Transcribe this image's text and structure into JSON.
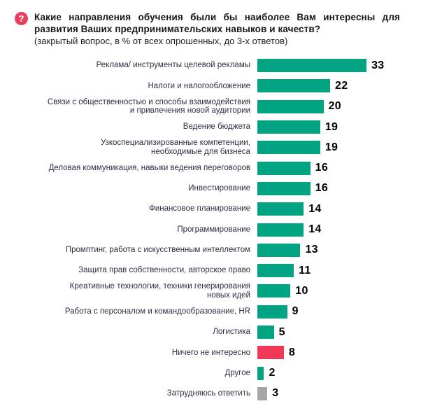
{
  "header": {
    "icon_glyph": "?",
    "title": "Какие направления обучения были бы наиболее Вам интересны для развития Ваших предпринимательских навыков и качеств?",
    "subtitle": "(закрытый вопрос, в % от всех опрошенных, до 3-х ответов)"
  },
  "colors": {
    "bar_teal": "#00a482",
    "bar_red": "#f23858",
    "bar_gray": "#a6a6a6",
    "icon_red": "#e8405e",
    "label_text": "#2d2d44",
    "value_text": "#000000"
  },
  "chart_data": {
    "type": "bar",
    "orientation": "horizontal",
    "title": "Какие направления обучения были бы наиболее Вам интересны для развития Ваших предпринимательских навыков и качеств?",
    "subtitle": "(закрытый вопрос, в % от всех опрошенных, до 3-х ответов)",
    "unit": "% от всех опрошенных",
    "xlim": [
      0,
      35
    ],
    "grid": false,
    "value_labels": "end-of-bar",
    "categories": [
      "Реклама/ инструменты целевой рекламы",
      "Налоги и налогообложение",
      "Связи с общественностью и способы взаимодействия\nи привлечения новой аудитории",
      "Ведение бюджета",
      "Узкоспециализированные компетенции,\nнеобходимые для бизнеса",
      "Деловая коммуникация, навыки ведения переговоров",
      "Инвестирование",
      "Финансовое планирование",
      "Программирование",
      "Промптинг, работа с искусственным интеллектом",
      "Защита прав собственности, авторское право",
      "Креативные технологии, техники генерирования\nновых идей",
      "Работа с персоналом и командообразование, HR",
      "Логистика",
      "Ничего не интересно",
      "Другое",
      "Затрудняюсь ответить"
    ],
    "values": [
      33,
      22,
      20,
      19,
      19,
      16,
      16,
      14,
      14,
      13,
      11,
      10,
      9,
      5,
      8,
      2,
      3
    ],
    "bar_colors": [
      "#00a482",
      "#00a482",
      "#00a482",
      "#00a482",
      "#00a482",
      "#00a482",
      "#00a482",
      "#00a482",
      "#00a482",
      "#00a482",
      "#00a482",
      "#00a482",
      "#00a482",
      "#00a482",
      "#f23858",
      "#00a482",
      "#a6a6a6"
    ]
  }
}
